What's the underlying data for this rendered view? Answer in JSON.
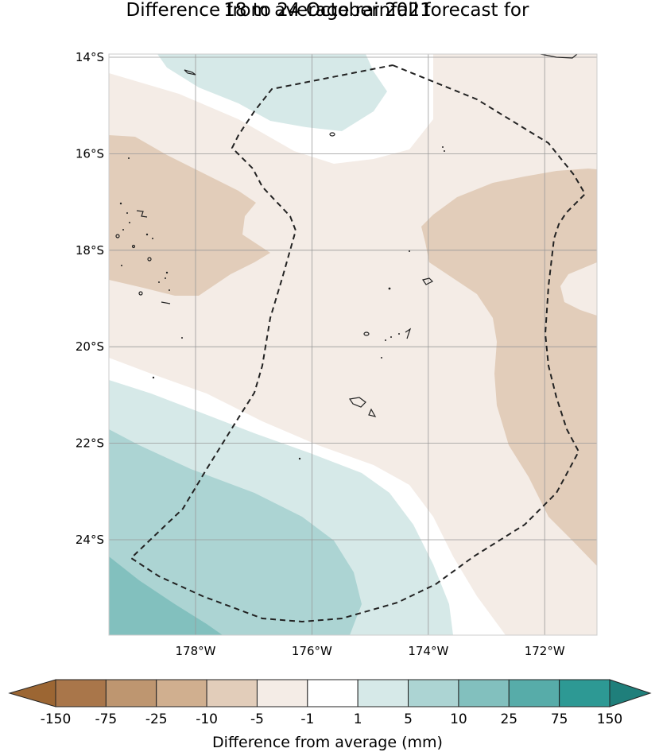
{
  "title_line1": "Difference from average rainfall forecast for",
  "title_line2": "18 to 24 October 2021",
  "lat_ticks": [
    {
      "label": "14°S",
      "lat": -14
    },
    {
      "label": "16°S",
      "lat": -16
    },
    {
      "label": "18°S",
      "lat": -18
    },
    {
      "label": "20°S",
      "lat": -20
    },
    {
      "label": "22°S",
      "lat": -22
    },
    {
      "label": "24°S",
      "lat": -24
    }
  ],
  "lon_ticks": [
    {
      "label": "178°W",
      "lon": -178
    },
    {
      "label": "176°W",
      "lon": -176
    },
    {
      "label": "174°W",
      "lon": -174
    },
    {
      "label": "172°W",
      "lon": -172
    }
  ],
  "colorbar": {
    "title": "Difference from average (mm)",
    "boundaries": [
      "-150",
      "-75",
      "-25",
      "-10",
      "-5",
      "-1",
      "1",
      "5",
      "10",
      "25",
      "75",
      "150"
    ],
    "colors": [
      "#a9764a",
      "#be9670",
      "#d0af8f",
      "#e2cdba",
      "#f4ece6",
      "#ffffff",
      "#d6e9e8",
      "#acd4d3",
      "#82c0be",
      "#57aca9",
      "#2d9994"
    ],
    "under_color": "#9c6633",
    "over_color": "#1f7f7b"
  },
  "map_colors": {
    "brown_light": "#f4ece6",
    "brown_medium": "#e2cdba",
    "teal_light": "#d6e9e8",
    "teal_medium": "#acd4d3",
    "teal_strong": "#82c0be",
    "boundary": "#222222",
    "grid": "#999999"
  }
}
